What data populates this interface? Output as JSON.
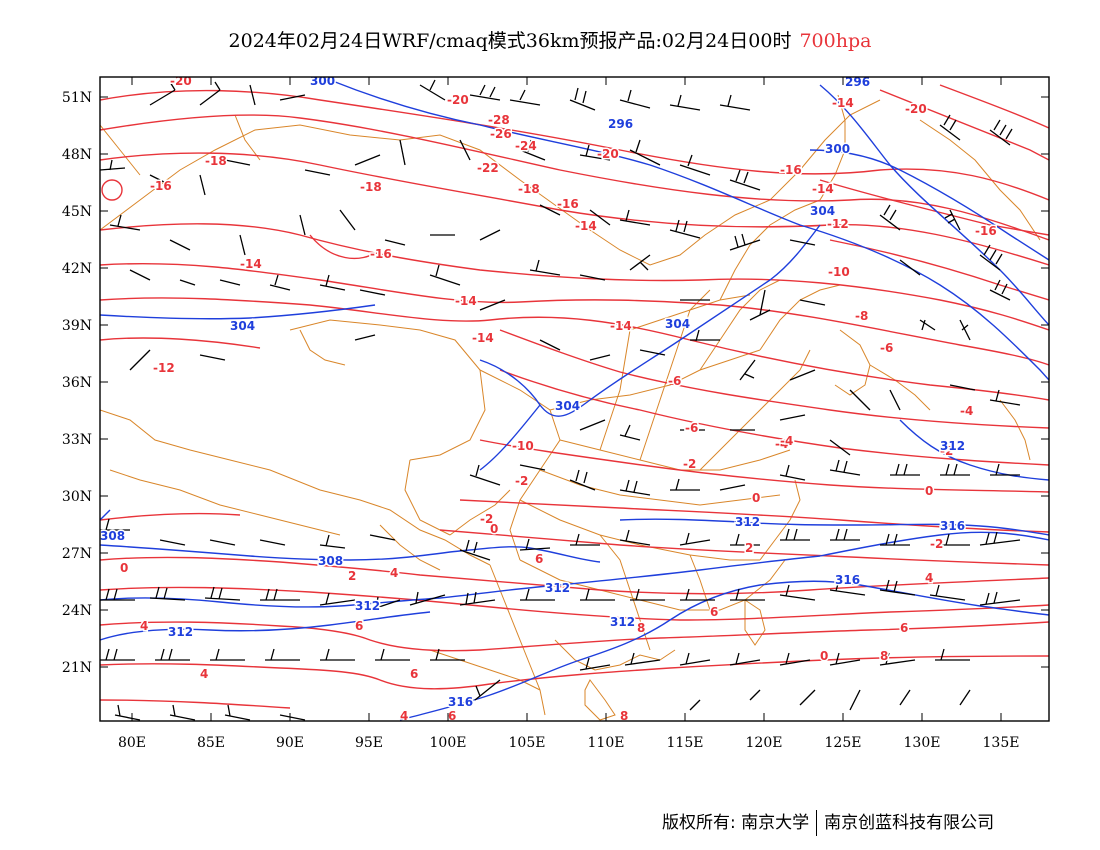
{
  "title": {
    "main": "2024年02月24日WRF/cmaq模式36km预报产品:02月24日00时",
    "level": "700hpa"
  },
  "axes": {
    "lat_labels": [
      "51N",
      "48N",
      "45N",
      "42N",
      "39N",
      "36N",
      "33N",
      "30N",
      "27N",
      "24N",
      "21N"
    ],
    "lon_labels": [
      "80E",
      "85E",
      "90E",
      "95E",
      "100E",
      "105E",
      "110E",
      "115E",
      "120E",
      "125E",
      "130E",
      "135E"
    ]
  },
  "colors": {
    "temperature": "#e8343a",
    "height": "#1f3fdc",
    "border": "#d9862a",
    "barb": "#000000"
  },
  "temperature_labels": [
    "-20",
    "-20",
    "-28",
    "-26",
    "-24",
    "-22",
    "-20",
    "-18",
    "-18",
    "-18",
    "-20",
    "-16",
    "-16",
    "-16",
    "-14",
    "-14",
    "-14",
    "-12",
    "-10",
    "-14",
    "-14",
    "-14",
    "-12",
    "-8",
    "-6",
    "-6",
    "-4",
    "-6",
    "-10",
    "-4",
    "-2",
    "-2",
    "-2",
    "-2",
    "0",
    "0",
    "-2",
    "0",
    "6",
    "2",
    "4",
    "2",
    "4",
    "0",
    "4",
    "6",
    "4",
    "6",
    "8",
    "6",
    "6",
    "8",
    "6",
    "8",
    "4",
    "0",
    "-16",
    "-16",
    "-4",
    "-14"
  ],
  "height_labels": [
    "300",
    "296",
    "296",
    "300",
    "304",
    "304",
    "304",
    "304",
    "308",
    "308",
    "312",
    "312",
    "312",
    "312",
    "312",
    "316",
    "316",
    "316",
    "312"
  ],
  "footer": {
    "left": "版权所有: 南京大学",
    "right": "南京创蓝科技有限公司"
  }
}
